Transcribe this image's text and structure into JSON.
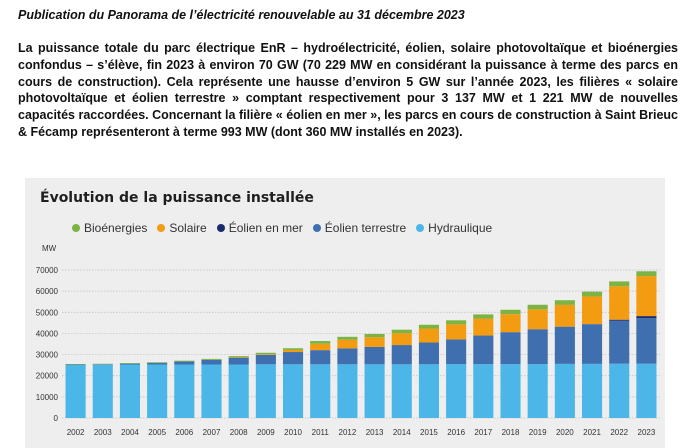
{
  "heading": "Publication du Panorama de l’électricité renouvelable au 31 décembre 2023",
  "paragraph": "La puissance totale du parc électrique EnR – hydroélectricité, éolien, solaire photovoltaïque et bioénergies confondus – s’élève, fin 2023 à environ 70 GW (70 229 MW en considérant la puissance à terme des parcs en cours de construction). Cela représente une hausse d’environ 5 GW sur l’année 2023, les filières « solaire photovoltaïque et éolien terrestre » comptant respectivement pour 3 137 MW et 1 221 MW de nouvelles capacités raccordées. Concernant la filière « éolien en mer », les parcs en cours de construction à Saint Brieuc & Fécamp représenteront à terme 993 MW (dont 360 MW installés en 2023).",
  "colors": {
    "bioenergies": "#7cb342",
    "solaire": "#f39c12",
    "eolien_mer": "#1a2b6b",
    "eolien_terrestre": "#3f6fae",
    "hydraulique": "#4db6e8"
  },
  "chart_data": {
    "type": "bar",
    "stacked": true,
    "title": "Évolution de la puissance installée",
    "ylabel": "MW",
    "xlabel": "",
    "ylim": [
      0,
      70000
    ],
    "yticks": [
      "0",
      "10000",
      "20000",
      "30000",
      "40000",
      "50000",
      "60000",
      "70000"
    ],
    "grid": true,
    "legend_position": "top",
    "categories": [
      "2002",
      "2003",
      "2004",
      "2005",
      "2006",
      "2007",
      "2008",
      "2009",
      "2010",
      "2011",
      "2012",
      "2013",
      "2014",
      "2015",
      "2016",
      "2017",
      "2018",
      "2019",
      "2020",
      "2021",
      "2022",
      "2023"
    ],
    "series": [
      {
        "key": "hydraulique",
        "name": "Hydraulique",
        "values": [
          25200,
          25200,
          25300,
          25300,
          25300,
          25300,
          25300,
          25400,
          25400,
          25400,
          25400,
          25400,
          25400,
          25400,
          25500,
          25500,
          25500,
          25500,
          25600,
          25600,
          25700,
          25700
        ]
      },
      {
        "key": "eolien_terrestre",
        "name": "Éolien terrestre",
        "values": [
          100,
          200,
          400,
          700,
          1400,
          2200,
          3300,
          4500,
          5800,
          6700,
          7500,
          8200,
          9100,
          10300,
          11700,
          13500,
          15100,
          16500,
          17600,
          18800,
          20300,
          21500
        ]
      },
      {
        "key": "eolien_mer",
        "name": "Éolien en mer",
        "values": [
          0,
          0,
          0,
          0,
          0,
          0,
          0,
          0,
          0,
          0,
          0,
          0,
          0,
          0,
          0,
          0,
          0,
          0,
          0,
          0,
          500,
          1000
        ]
      },
      {
        "key": "solaire",
        "name": "Solaire",
        "values": [
          0,
          0,
          0,
          0,
          0,
          0,
          100,
          300,
          1000,
          3000,
          4100,
          4600,
          5600,
          6600,
          7100,
          8000,
          8500,
          9400,
          10300,
          13100,
          15800,
          18900
        ]
      },
      {
        "key": "bioenergies",
        "name": "Bioénergies",
        "values": [
          200,
          250,
          300,
          350,
          400,
          450,
          550,
          650,
          800,
          1300,
          1400,
          1550,
          1650,
          1800,
          1900,
          2000,
          2100,
          2150,
          2200,
          2250,
          2300,
          2300
        ]
      }
    ],
    "legend_order": [
      "bioenergies",
      "solaire",
      "eolien_mer",
      "eolien_terrestre",
      "hydraulique"
    ]
  }
}
